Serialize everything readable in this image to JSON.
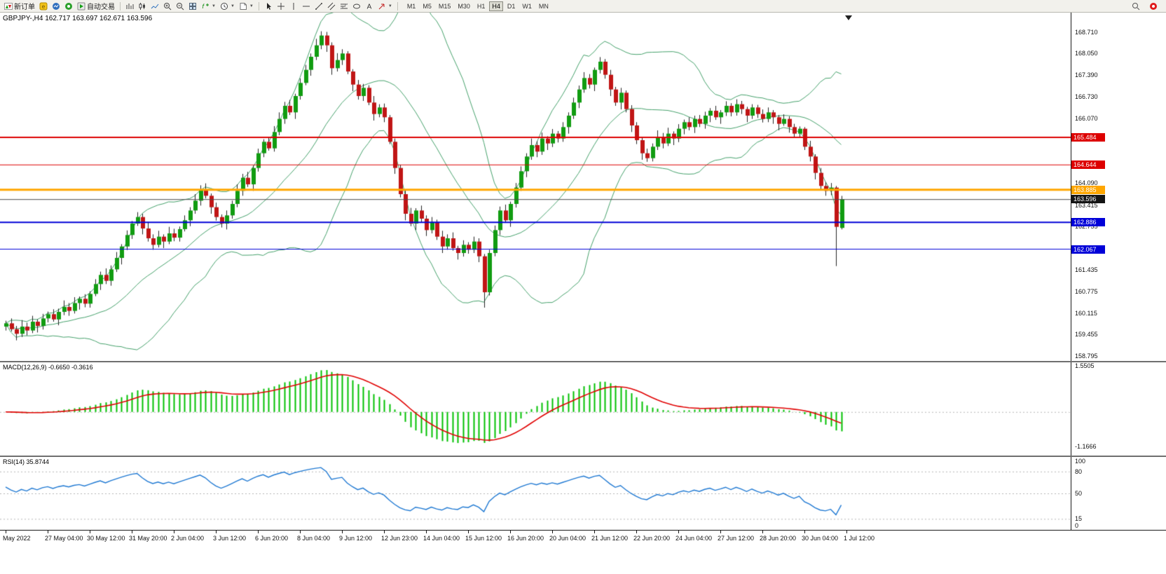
{
  "toolbar": {
    "groups": [
      {
        "separator_before": false,
        "items": [
          {
            "name": "new-order",
            "icon": "new-order-icon",
            "label": "新订单"
          }
        ]
      },
      {
        "separator_before": false,
        "items": [
          {
            "name": "metaeditor",
            "icon": "metaeditor-icon"
          },
          {
            "name": "market-watch",
            "icon": "market-watch-icon"
          },
          {
            "name": "navigator",
            "icon": "navigator-icon"
          }
        ]
      },
      {
        "separator_before": false,
        "items": [
          {
            "name": "autotrading",
            "icon": "autotrading-icon",
            "label": "自动交易"
          }
        ]
      },
      {
        "separator_before": true,
        "items": [
          {
            "name": "bar-chart",
            "icon": "bar-chart-icon"
          },
          {
            "name": "candlestick-chart",
            "icon": "candlestick-icon"
          },
          {
            "name": "line-chart",
            "icon": "line-chart-icon"
          }
        ]
      },
      {
        "separator_before": false,
        "items": [
          {
            "name": "zoom-in",
            "icon": "zoom-in-icon"
          },
          {
            "name": "zoom-out",
            "icon": "zoom-out-icon"
          },
          {
            "name": "tile-windows",
            "icon": "tile-windows-icon"
          }
        ]
      },
      {
        "separator_before": false,
        "items": [
          {
            "name": "indicators",
            "icon": "indicators-icon",
            "caret": true
          },
          {
            "name": "periods",
            "icon": "periods-icon",
            "caret": true
          },
          {
            "name": "templates",
            "icon": "templates-icon",
            "caret": true
          }
        ]
      },
      {
        "separator_before": true,
        "items": [
          {
            "name": "cursor",
            "icon": "cursor-icon"
          },
          {
            "name": "crosshair",
            "icon": "crosshair-icon"
          },
          {
            "name": "vertical-line",
            "icon": "vertical-line-icon"
          },
          {
            "name": "horizontal-line",
            "icon": "horizontal-line-icon"
          },
          {
            "name": "trendline",
            "icon": "trendline-icon"
          },
          {
            "name": "equidistant-channel",
            "icon": "channel-icon"
          },
          {
            "name": "fibonacci-retracement",
            "icon": "fibonacci-icon"
          },
          {
            "name": "shapes",
            "icon": "shapes-icon"
          },
          {
            "name": "text-label",
            "icon": "text-icon"
          },
          {
            "name": "arrow-objects",
            "icon": "arrows-icon",
            "caret": true
          }
        ]
      }
    ],
    "timeframes": {
      "items": [
        "M1",
        "M5",
        "M15",
        "M30",
        "H1",
        "H4",
        "D1",
        "W1",
        "MN"
      ],
      "active": "H4"
    },
    "right_items": [
      {
        "name": "search",
        "icon": "search-icon"
      },
      {
        "name": "notification",
        "icon": "red-badge-icon"
      }
    ]
  },
  "main_chart": {
    "title": "GBPJPY-,H4 162.717 163.697 162.671 163.596"
  },
  "macd_panel": {
    "label": "MACD(12,26,9) -0.6650 -0.3616",
    "axis_labels": [
      "1.5505",
      "-1.1666"
    ]
  },
  "rsi_panel": {
    "label": "RSI(14) 35.8744",
    "axis_labels": [
      "100",
      "80",
      "50",
      "15",
      "0"
    ]
  },
  "chart_data": {
    "type": "candlestick",
    "symbol": "GBPJPY-",
    "period": "H4",
    "current_ohlc": {
      "open": 162.717,
      "high": 163.697,
      "low": 162.671,
      "close": 163.596
    },
    "colors": {
      "bull": "#119c11",
      "bear": "#c01515",
      "wick": "#222222",
      "bollinger": "#44a06a",
      "macd_histogram": "#00c000",
      "macd_signal": "#e00000",
      "rsi_line": "#1e78d2"
    },
    "price_axis_ticks": [
      "168.710",
      "168.050",
      "167.390",
      "166.730",
      "166.070",
      "164.090",
      "163.415",
      "162.755",
      "161.435",
      "160.775",
      "160.115",
      "159.455",
      "158.795"
    ],
    "horizontal_lines": [
      {
        "price": 165.484,
        "label": "165.484",
        "color": "#dd0000",
        "width": 2
      },
      {
        "price": 164.644,
        "label": "164.644",
        "color": "#dd0000",
        "width": 1
      },
      {
        "price": 163.885,
        "label": "163.885",
        "color": "#ffa600",
        "width": 3
      },
      {
        "price": 162.886,
        "label": "162.886",
        "color": "#0000d8",
        "width": 2
      },
      {
        "price": 162.067,
        "label": "162.067",
        "color": "#0000d8",
        "width": 1
      }
    ],
    "current_price": {
      "price": 163.596,
      "label": "163.596",
      "line_color": "#4a4a4a",
      "tag_color": "#141414"
    },
    "bollinger": {
      "period": 20,
      "deviation": 2
    },
    "macd": {
      "fast": 12,
      "slow": 26,
      "signal": 9,
      "axis_max": 1.5505,
      "axis_min": -1.1666,
      "value": -0.665,
      "signal_value": -0.3616
    },
    "rsi": {
      "period": 14,
      "value": 35.8744,
      "levels": [
        80,
        50,
        15
      ],
      "range": [
        0,
        100
      ]
    },
    "time_labels": [
      "May 2022",
      "27 May 04:00",
      "30 May 12:00",
      "31 May 20:00",
      "2 Jun 04:00",
      "3 Jun 12:00",
      "6 Jun 20:00",
      "8 Jun 04:00",
      "9 Jun 12:00",
      "12 Jun 23:00",
      "14 Jun 04:00",
      "15 Jun 12:00",
      "16 Jun 20:00",
      "20 Jun 04:00",
      "21 Jun 12:00",
      "22 Jun 20:00",
      "24 Jun 04:00",
      "27 Jun 12:00",
      "28 Jun 20:00",
      "30 Jun 04:00",
      "1 Jul 12:00"
    ],
    "candles_per_label": 8,
    "candles": [
      [
        159.7,
        159.88,
        159.58,
        159.8
      ],
      [
        159.8,
        159.95,
        159.55,
        159.62
      ],
      [
        159.62,
        159.72,
        159.28,
        159.48
      ],
      [
        159.48,
        159.9,
        159.38,
        159.7
      ],
      [
        159.7,
        159.82,
        159.43,
        159.58
      ],
      [
        159.58,
        160.03,
        159.5,
        159.85
      ],
      [
        159.85,
        159.92,
        159.52,
        159.72
      ],
      [
        159.72,
        160.09,
        159.61,
        159.95
      ],
      [
        159.95,
        160.16,
        159.83,
        160.08
      ],
      [
        160.08,
        160.23,
        159.85,
        159.92
      ],
      [
        159.92,
        160.25,
        159.74,
        160.15
      ],
      [
        160.15,
        160.5,
        160.05,
        160.3
      ],
      [
        160.3,
        160.42,
        160.03,
        160.18
      ],
      [
        160.18,
        160.6,
        160.1,
        160.42
      ],
      [
        160.42,
        160.62,
        160.22,
        160.55
      ],
      [
        160.55,
        160.69,
        160.29,
        160.4
      ],
      [
        160.4,
        160.78,
        160.28,
        160.7
      ],
      [
        160.7,
        161.15,
        160.63,
        161.0
      ],
      [
        161.0,
        161.38,
        160.82,
        161.28
      ],
      [
        161.28,
        161.48,
        161.0,
        161.1
      ],
      [
        161.1,
        161.57,
        160.95,
        161.45
      ],
      [
        161.45,
        161.98,
        161.37,
        161.8
      ],
      [
        161.8,
        162.22,
        161.6,
        162.15
      ],
      [
        162.15,
        162.64,
        162.04,
        162.5
      ],
      [
        162.5,
        162.93,
        162.38,
        162.85
      ],
      [
        162.85,
        163.2,
        162.78,
        163.05
      ],
      [
        163.05,
        163.15,
        162.52,
        162.7
      ],
      [
        162.7,
        162.9,
        162.3,
        162.4
      ],
      [
        162.4,
        162.52,
        162.05,
        162.2
      ],
      [
        162.2,
        162.63,
        162.12,
        162.45
      ],
      [
        162.45,
        162.52,
        162.1,
        162.3
      ],
      [
        162.3,
        162.75,
        162.22,
        162.55
      ],
      [
        162.55,
        162.69,
        162.31,
        162.42
      ],
      [
        162.42,
        162.76,
        162.3,
        162.68
      ],
      [
        162.68,
        163.1,
        162.61,
        162.95
      ],
      [
        162.95,
        163.35,
        162.77,
        163.25
      ],
      [
        163.25,
        163.75,
        163.15,
        163.55
      ],
      [
        163.55,
        164.02,
        163.4,
        163.9
      ],
      [
        163.9,
        164.08,
        163.62,
        163.7
      ],
      [
        163.7,
        163.77,
        163.15,
        163.35
      ],
      [
        163.35,
        163.49,
        162.94,
        163.05
      ],
      [
        163.05,
        163.13,
        162.73,
        162.85
      ],
      [
        162.85,
        163.25,
        162.67,
        163.1
      ],
      [
        163.1,
        163.55,
        163.0,
        163.45
      ],
      [
        163.45,
        164.05,
        163.35,
        163.85
      ],
      [
        163.85,
        164.37,
        163.7,
        164.25
      ],
      [
        164.25,
        164.43,
        163.97,
        164.05
      ],
      [
        164.05,
        164.62,
        163.85,
        164.55
      ],
      [
        164.55,
        165.14,
        164.44,
        165.0
      ],
      [
        165.0,
        165.43,
        164.88,
        165.35
      ],
      [
        165.35,
        165.5,
        165.08,
        165.15
      ],
      [
        165.15,
        165.83,
        165.05,
        165.65
      ],
      [
        165.65,
        166.25,
        165.55,
        166.05
      ],
      [
        166.05,
        166.57,
        165.9,
        166.45
      ],
      [
        166.45,
        166.63,
        166.17,
        166.25
      ],
      [
        166.25,
        166.82,
        166.05,
        166.75
      ],
      [
        166.75,
        167.29,
        166.64,
        167.15
      ],
      [
        167.15,
        167.7,
        167.08,
        167.55
      ],
      [
        167.55,
        168.05,
        167.37,
        167.95
      ],
      [
        167.95,
        168.5,
        167.85,
        168.3
      ],
      [
        168.3,
        168.73,
        168.18,
        168.6
      ],
      [
        168.6,
        168.71,
        168.1,
        168.3
      ],
      [
        168.3,
        168.39,
        167.4,
        167.6
      ],
      [
        167.6,
        168.06,
        167.5,
        167.85
      ],
      [
        167.85,
        168.18,
        167.7,
        168.05
      ],
      [
        168.05,
        168.12,
        167.42,
        167.5
      ],
      [
        167.5,
        167.57,
        166.9,
        167.1
      ],
      [
        167.1,
        167.24,
        166.64,
        166.75
      ],
      [
        166.75,
        167.12,
        166.6,
        167.0
      ],
      [
        167.0,
        167.08,
        166.47,
        166.55
      ],
      [
        166.55,
        166.75,
        166.0,
        166.2
      ],
      [
        166.2,
        166.5,
        166.1,
        166.4
      ],
      [
        166.4,
        166.52,
        165.95,
        166.1
      ],
      [
        166.1,
        166.17,
        165.28,
        165.35
      ],
      [
        165.35,
        165.45,
        164.37,
        164.55
      ],
      [
        164.55,
        164.65,
        163.65,
        163.75
      ],
      [
        163.75,
        163.87,
        162.95,
        163.15
      ],
      [
        163.15,
        163.33,
        162.77,
        162.85
      ],
      [
        162.85,
        163.32,
        162.65,
        163.25
      ],
      [
        163.25,
        163.4,
        162.89,
        163.0
      ],
      [
        163.0,
        163.1,
        162.47,
        162.65
      ],
      [
        162.65,
        163.05,
        162.55,
        162.9
      ],
      [
        162.9,
        162.97,
        162.35,
        162.45
      ],
      [
        162.45,
        162.63,
        161.95,
        162.15
      ],
      [
        162.15,
        162.52,
        162.05,
        162.4
      ],
      [
        162.4,
        162.58,
        162.02,
        162.1
      ],
      [
        162.1,
        162.17,
        161.75,
        161.95
      ],
      [
        161.95,
        162.34,
        161.84,
        162.2
      ],
      [
        162.2,
        162.28,
        161.93,
        162.05
      ],
      [
        162.05,
        162.45,
        161.95,
        162.3
      ],
      [
        162.3,
        162.4,
        161.67,
        161.85
      ],
      [
        161.85,
        161.92,
        160.28,
        160.75
      ],
      [
        160.75,
        162.05,
        160.65,
        161.95
      ],
      [
        161.95,
        162.79,
        161.85,
        162.65
      ],
      [
        162.65,
        163.37,
        162.5,
        163.25
      ],
      [
        163.25,
        163.43,
        162.87,
        162.95
      ],
      [
        162.95,
        163.52,
        162.75,
        163.45
      ],
      [
        163.45,
        164.09,
        163.34,
        163.95
      ],
      [
        163.95,
        164.6,
        163.85,
        164.45
      ],
      [
        164.45,
        165.0,
        164.27,
        164.9
      ],
      [
        164.9,
        165.45,
        164.8,
        165.25
      ],
      [
        165.25,
        165.37,
        164.88,
        165.05
      ],
      [
        165.05,
        165.63,
        164.95,
        165.45
      ],
      [
        165.45,
        165.52,
        165.1,
        165.3
      ],
      [
        165.3,
        165.74,
        165.19,
        165.6
      ],
      [
        165.6,
        165.68,
        165.33,
        165.45
      ],
      [
        165.45,
        165.95,
        165.35,
        165.8
      ],
      [
        165.8,
        166.25,
        165.6,
        166.15
      ],
      [
        166.15,
        166.7,
        166.05,
        166.55
      ],
      [
        166.55,
        167.07,
        166.38,
        166.95
      ],
      [
        166.95,
        167.48,
        166.85,
        167.3
      ],
      [
        167.3,
        167.42,
        166.98,
        167.1
      ],
      [
        167.1,
        167.62,
        166.9,
        167.55
      ],
      [
        167.55,
        167.94,
        167.44,
        167.8
      ],
      [
        167.8,
        167.88,
        167.28,
        167.4
      ],
      [
        167.4,
        167.55,
        166.75,
        166.95
      ],
      [
        166.95,
        167.03,
        166.45,
        166.55
      ],
      [
        166.55,
        167.0,
        166.34,
        166.85
      ],
      [
        166.85,
        166.92,
        166.25,
        166.35
      ],
      [
        166.35,
        166.47,
        165.65,
        165.85
      ],
      [
        165.85,
        165.95,
        165.28,
        165.4
      ],
      [
        165.4,
        165.48,
        164.8,
        165.0
      ],
      [
        165.0,
        165.14,
        164.74,
        164.85
      ],
      [
        164.85,
        165.3,
        164.75,
        165.2
      ],
      [
        165.2,
        165.7,
        165.1,
        165.5
      ],
      [
        165.5,
        165.62,
        165.15,
        165.3
      ],
      [
        165.3,
        165.78,
        165.22,
        165.6
      ],
      [
        165.6,
        165.67,
        165.25,
        165.45
      ],
      [
        165.45,
        165.89,
        165.34,
        165.75
      ],
      [
        165.75,
        166.03,
        165.58,
        165.95
      ],
      [
        165.95,
        166.1,
        165.7,
        165.8
      ],
      [
        165.8,
        166.15,
        165.62,
        166.05
      ],
      [
        166.05,
        166.17,
        165.8,
        165.9
      ],
      [
        165.9,
        166.27,
        165.75,
        166.15
      ],
      [
        166.15,
        166.38,
        165.95,
        166.3
      ],
      [
        166.3,
        166.45,
        166.02,
        166.1
      ],
      [
        166.1,
        166.32,
        165.9,
        166.25
      ],
      [
        166.25,
        166.59,
        166.14,
        166.45
      ],
      [
        166.45,
        166.53,
        166.13,
        166.25
      ],
      [
        166.25,
        166.65,
        166.15,
        166.5
      ],
      [
        166.5,
        166.6,
        166.2,
        166.35
      ],
      [
        166.35,
        166.42,
        165.95,
        166.15
      ],
      [
        166.15,
        166.5,
        166.05,
        166.4
      ],
      [
        166.4,
        166.48,
        166.08,
        166.2
      ],
      [
        166.2,
        166.34,
        165.94,
        166.05
      ],
      [
        166.05,
        166.4,
        165.95,
        166.25
      ],
      [
        166.25,
        166.32,
        165.9,
        166.1
      ],
      [
        166.1,
        166.17,
        165.7,
        165.9
      ],
      [
        165.9,
        166.19,
        165.84,
        166.05
      ],
      [
        166.05,
        166.13,
        165.63,
        165.8
      ],
      [
        165.8,
        165.9,
        165.47,
        165.6
      ],
      [
        165.6,
        165.82,
        165.5,
        165.75
      ],
      [
        165.75,
        165.8,
        165.1,
        165.2
      ],
      [
        165.2,
        165.38,
        164.75,
        164.9
      ],
      [
        164.9,
        164.97,
        164.2,
        164.4
      ],
      [
        164.4,
        164.55,
        163.88,
        164.0
      ],
      [
        164.0,
        164.12,
        163.7,
        163.85
      ],
      [
        163.85,
        164.09,
        163.72,
        163.95
      ],
      [
        163.95,
        164.0,
        161.55,
        162.75
      ],
      [
        162.717,
        163.697,
        162.671,
        163.596
      ]
    ]
  }
}
